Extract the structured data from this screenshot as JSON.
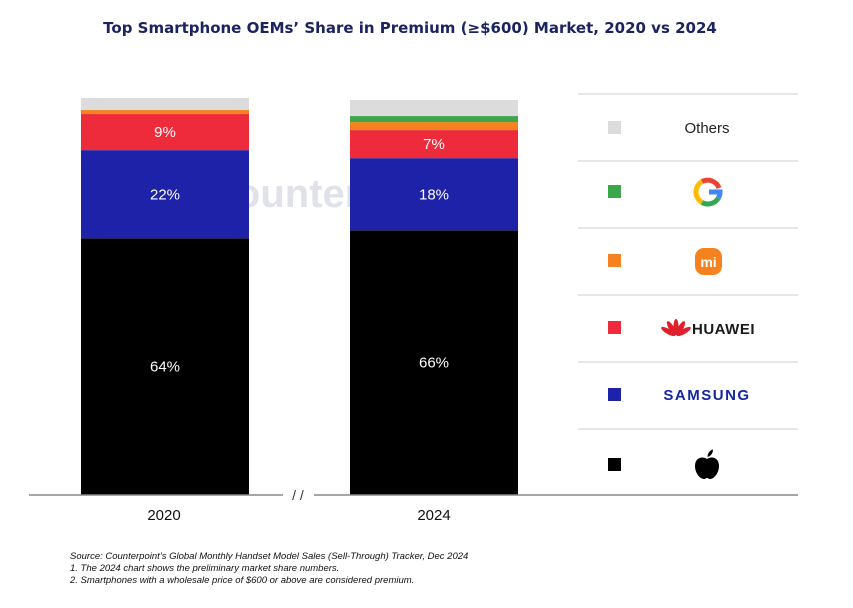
{
  "chart_data": {
    "type": "bar",
    "stacked": true,
    "title": "Top Smartphone OEMs’ Share in Premium (≥$600) Market, 2020 vs 2024",
    "categories": [
      "2020",
      "2024"
    ],
    "axis_break": "/ /",
    "watermark": "Counterpoint",
    "ylim": [
      0,
      100
    ],
    "series": [
      {
        "name": "Apple",
        "brand": "apple-logo",
        "color": "#000000",
        "values": [
          64,
          66
        ],
        "labels": [
          "64%",
          "66%"
        ]
      },
      {
        "name": "Samsung",
        "brand": "samsung-logo",
        "color": "#1e22a8",
        "values": [
          22,
          18
        ],
        "labels": [
          "22%",
          "18%"
        ]
      },
      {
        "name": "Huawei",
        "brand": "huawei-logo",
        "color": "#ee2b3b",
        "values": [
          9,
          7
        ],
        "labels": [
          "9%",
          "7%"
        ]
      },
      {
        "name": "Xiaomi",
        "brand": "xiaomi-logo",
        "color": "#f5821f",
        "values": [
          1,
          2
        ],
        "labels": [
          "",
          ""
        ]
      },
      {
        "name": "Google",
        "brand": "google-logo",
        "color": "#3ca64a",
        "values": [
          0,
          1.5
        ],
        "labels": [
          "",
          ""
        ]
      },
      {
        "name": "Others",
        "brand": "",
        "color": "#dcdcdc",
        "values": [
          3,
          4
        ],
        "labels": [
          "",
          ""
        ]
      }
    ],
    "legend": {
      "placement": "right",
      "items": [
        {
          "key": "others",
          "text": "Others",
          "color": "#dcdcdc",
          "icon": "others-label"
        },
        {
          "key": "google",
          "text": "",
          "color": "#3ca64a",
          "icon": "google-logo"
        },
        {
          "key": "xiaomi",
          "text": "mi",
          "color": "#f5821f",
          "icon": "xiaomi-logo"
        },
        {
          "key": "huawei",
          "text": "HUAWEI",
          "color": "#ee2b3b",
          "icon": "huawei-logo"
        },
        {
          "key": "samsung",
          "text": "SAMSUNG",
          "color": "#1e22a8",
          "icon": "samsung-logo"
        },
        {
          "key": "apple",
          "text": "",
          "color": "#000000",
          "icon": "apple-logo"
        }
      ]
    },
    "notes": [
      "Source: Counterpoint’s Global Monthly Handset Model Sales (Sell-Through) Tracker, Dec 2024",
      "1. The 2024 chart shows the preliminary market share numbers.",
      "2. Smartphones with a wholesale price of $600 or above are considered premium."
    ],
    "colors": {
      "title": "#1b2460",
      "axis": "#888888",
      "divider": "#cccccc",
      "label_on_dark": "#ffffff"
    }
  }
}
